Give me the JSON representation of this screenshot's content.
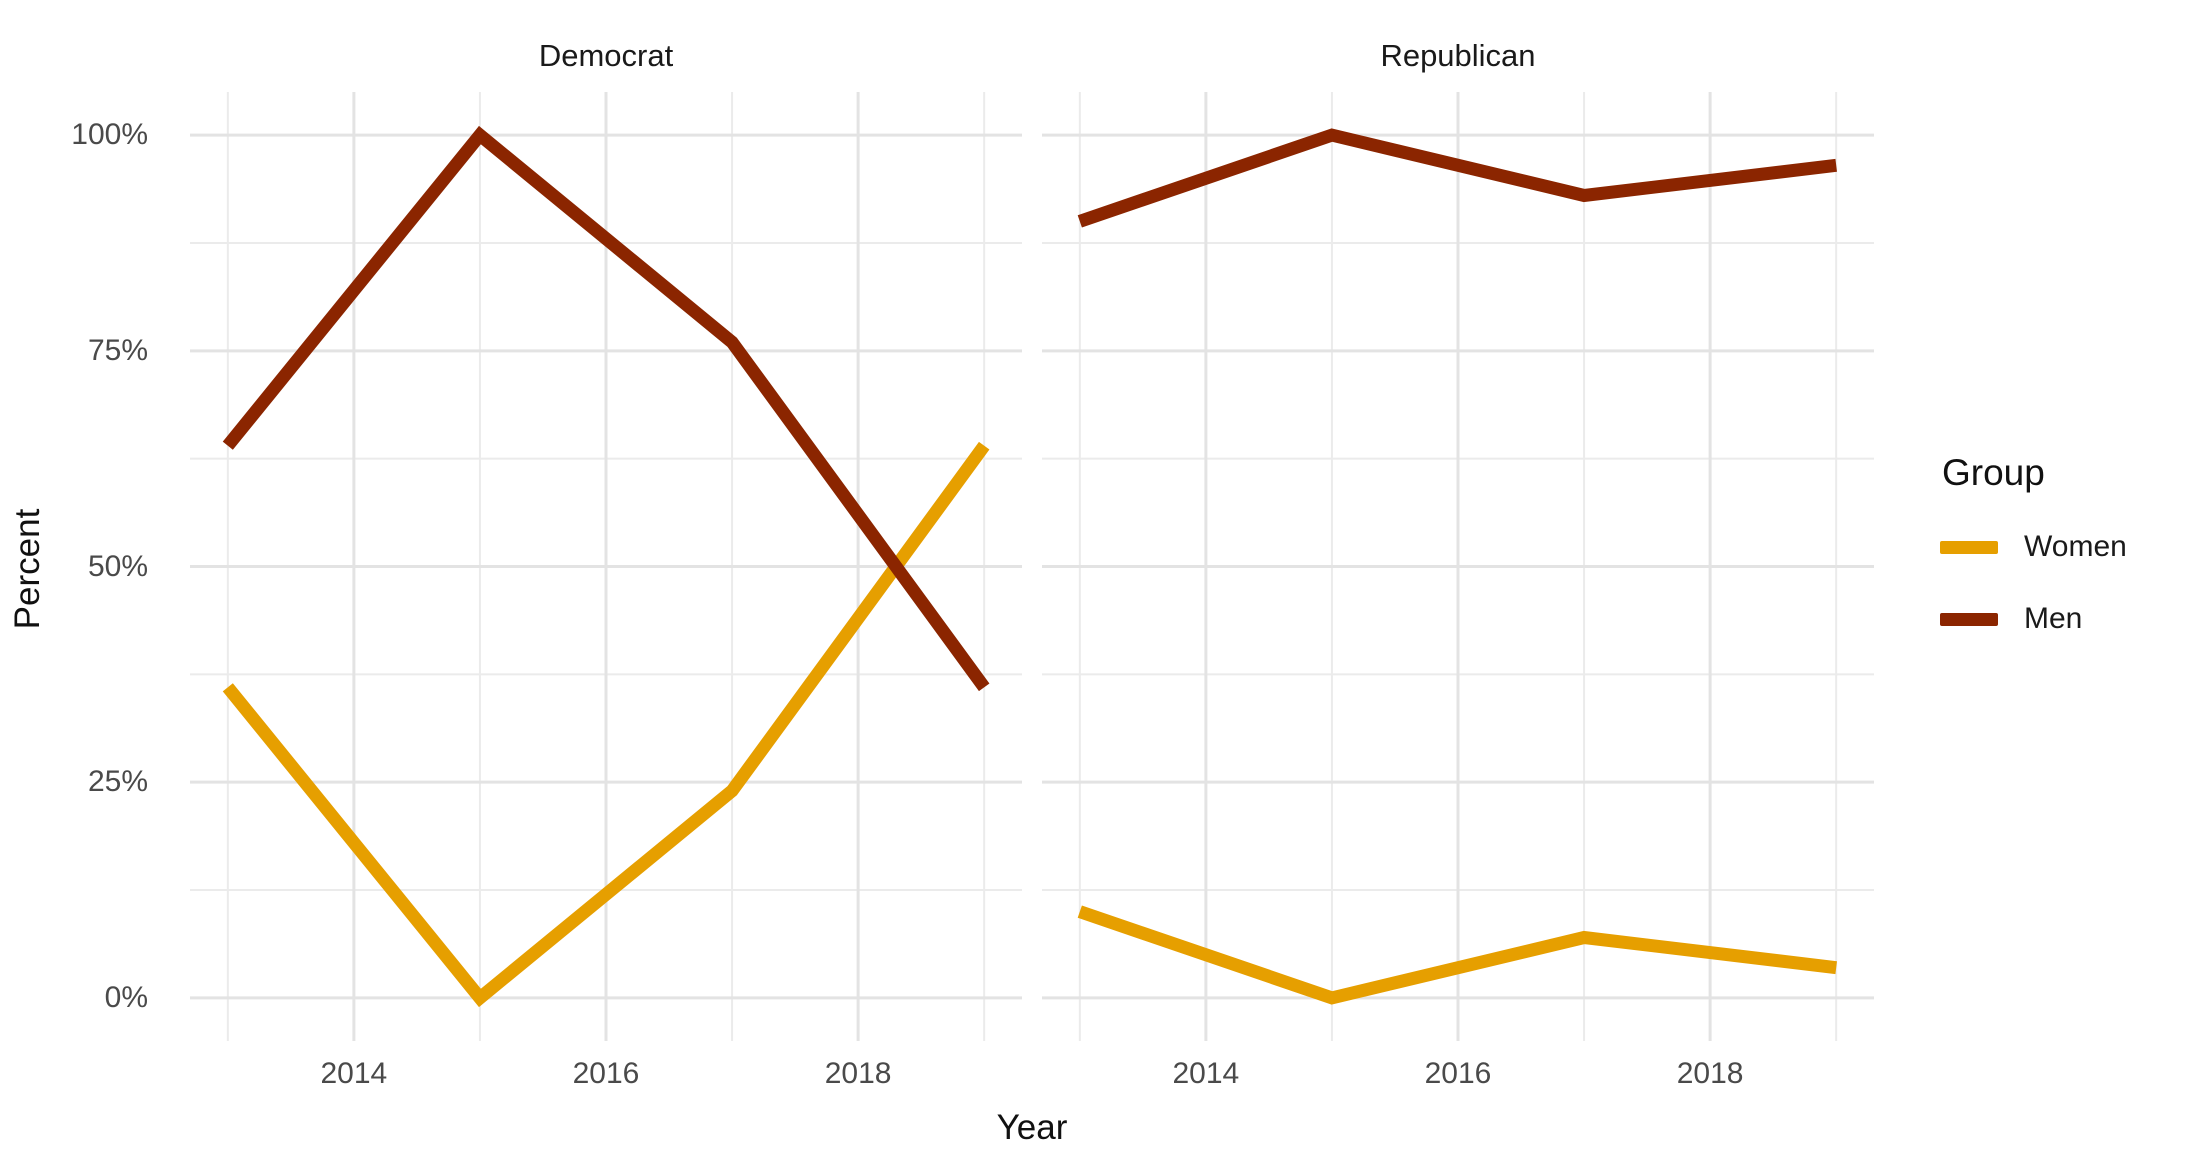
{
  "chart_data": {
    "type": "line",
    "title": "",
    "xlabel": "Year",
    "ylabel": "Percent",
    "x": [
      2013,
      2015,
      2017,
      2019
    ],
    "xlim": [
      2013,
      2019
    ],
    "ylim": [
      0,
      100
    ],
    "grid": true,
    "legend_position": "right",
    "legend_title": "Group",
    "legend_entries": [
      "Women",
      "Men"
    ],
    "series_colors": {
      "Women": "#E69F00",
      "Men": "#8B2500"
    },
    "facets": [
      {
        "label": "Democrat",
        "series": [
          {
            "name": "Women",
            "values": [
              36,
              0,
              24,
              64
            ]
          },
          {
            "name": "Men",
            "values": [
              64,
              100,
              76,
              36
            ]
          }
        ]
      },
      {
        "label": "Republican",
        "series": [
          {
            "name": "Women",
            "values": [
              10,
              0,
              7,
              3.5
            ]
          },
          {
            "name": "Men",
            "values": [
              90,
              100,
              93,
              96.5
            ]
          }
        ]
      }
    ],
    "x_axis_ticks": [
      2014,
      2016,
      2018
    ],
    "x_tick_labels": [
      "2014",
      "2016",
      "2018"
    ],
    "x_minor_ticks": [
      2013,
      2015,
      2017,
      2019
    ],
    "y_axis_ticks": [
      0,
      25,
      50,
      75,
      100
    ],
    "y_tick_labels": [
      "0%",
      "25%",
      "50%",
      "75%",
      "100%"
    ],
    "y_minor_ticks": [
      12.5,
      37.5,
      62.5,
      87.5
    ]
  }
}
